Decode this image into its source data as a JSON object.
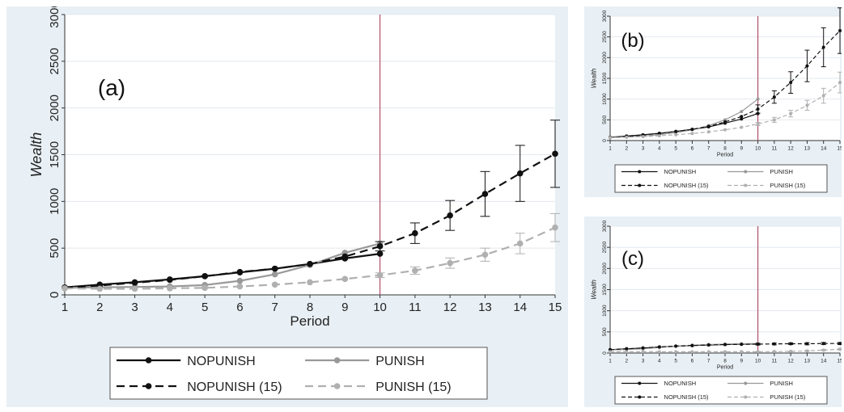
{
  "chart_data": [
    {
      "panel": "a",
      "type": "line",
      "label": "(a)",
      "xlabel": "Period",
      "ylabel": "Wealth",
      "xlim": [
        1,
        15
      ],
      "ylim": [
        0,
        3000
      ],
      "x_ticks": [
        1,
        2,
        3,
        4,
        5,
        6,
        7,
        8,
        9,
        10,
        11,
        12,
        13,
        14,
        15
      ],
      "y_ticks": [
        0,
        500,
        1000,
        1500,
        2000,
        2500,
        3000
      ],
      "vline_x": 10,
      "grid": "horizontal",
      "legend_position": "bottom",
      "series": [
        {
          "name": "NOPUNISH",
          "color": "#111111",
          "dash": "solid",
          "x": [
            1,
            2,
            3,
            4,
            5,
            6,
            7,
            8,
            9,
            10
          ],
          "values": [
            80,
            110,
            135,
            165,
            200,
            240,
            280,
            330,
            390,
            440
          ]
        },
        {
          "name": "PUNISH",
          "color": "#999999",
          "dash": "solid",
          "x": [
            1,
            2,
            3,
            4,
            5,
            6,
            7,
            8,
            9,
            10
          ],
          "values": [
            75,
            80,
            85,
            90,
            105,
            150,
            220,
            320,
            450,
            550
          ]
        },
        {
          "name": "NOPUNISH (15)",
          "color": "#111111",
          "dash": "dashed",
          "x": [
            1,
            2,
            3,
            4,
            5,
            6,
            7,
            8,
            9,
            10,
            11,
            12,
            13,
            14,
            15
          ],
          "values": [
            75,
            100,
            130,
            160,
            200,
            245,
            280,
            330,
            410,
            520,
            660,
            850,
            1080,
            1300,
            1510
          ],
          "errors": [
            0,
            0,
            0,
            0,
            0,
            0,
            0,
            0,
            0,
            50,
            110,
            160,
            240,
            300,
            360
          ]
        },
        {
          "name": "PUNISH (15)",
          "color": "#b0b0b0",
          "dash": "dashed",
          "x": [
            1,
            2,
            3,
            4,
            5,
            6,
            7,
            8,
            9,
            10,
            11,
            12,
            13,
            14,
            15
          ],
          "values": [
            70,
            65,
            65,
            70,
            75,
            90,
            110,
            135,
            170,
            210,
            260,
            340,
            430,
            550,
            720
          ],
          "errors": [
            0,
            0,
            0,
            0,
            0,
            0,
            0,
            0,
            0,
            25,
            40,
            55,
            70,
            110,
            150
          ]
        }
      ]
    },
    {
      "panel": "b",
      "type": "line",
      "label": "(b)",
      "xlabel": "Period",
      "ylabel": "Wealth",
      "xlim": [
        1,
        15
      ],
      "ylim": [
        0,
        3000
      ],
      "x_ticks": [
        1,
        2,
        3,
        4,
        5,
        6,
        7,
        8,
        9,
        10,
        11,
        12,
        13,
        14,
        15
      ],
      "y_ticks": [
        0,
        500,
        1000,
        1500,
        2000,
        2500,
        3000
      ],
      "vline_x": 10,
      "grid": "horizontal",
      "legend_position": "bottom",
      "series": [
        {
          "name": "NOPUNISH",
          "color": "#111111",
          "dash": "solid",
          "x": [
            1,
            2,
            3,
            4,
            5,
            6,
            7,
            8,
            9,
            10
          ],
          "values": [
            80,
            110,
            140,
            175,
            220,
            270,
            330,
            420,
            520,
            650
          ]
        },
        {
          "name": "PUNISH",
          "color": "#999999",
          "dash": "solid",
          "x": [
            1,
            2,
            3,
            4,
            5,
            6,
            7,
            8,
            9,
            10
          ],
          "values": [
            75,
            90,
            110,
            140,
            190,
            260,
            360,
            500,
            700,
            1000
          ]
        },
        {
          "name": "NOPUNISH (15)",
          "color": "#111111",
          "dash": "dashed",
          "x": [
            1,
            2,
            3,
            4,
            5,
            6,
            7,
            8,
            9,
            10,
            11,
            12,
            13,
            14,
            15
          ],
          "values": [
            75,
            100,
            135,
            170,
            220,
            270,
            340,
            450,
            580,
            760,
            1050,
            1400,
            1800,
            2250,
            2650
          ],
          "errors": [
            0,
            0,
            0,
            0,
            0,
            0,
            0,
            0,
            0,
            100,
            150,
            260,
            380,
            470,
            550
          ]
        },
        {
          "name": "PUNISH (15)",
          "color": "#b0b0b0",
          "dash": "dashed",
          "x": [
            1,
            2,
            3,
            4,
            5,
            6,
            7,
            8,
            9,
            10,
            11,
            12,
            13,
            14,
            15
          ],
          "values": [
            70,
            80,
            95,
            115,
            140,
            170,
            210,
            260,
            320,
            400,
            500,
            650,
            850,
            1080,
            1400
          ],
          "errors": [
            0,
            0,
            0,
            0,
            0,
            0,
            0,
            0,
            0,
            40,
            60,
            80,
            120,
            180,
            250
          ]
        }
      ]
    },
    {
      "panel": "c",
      "type": "line",
      "label": "(c)",
      "xlabel": "Period",
      "ylabel": "Wealth",
      "xlim": [
        1,
        15
      ],
      "ylim": [
        0,
        3000
      ],
      "x_ticks": [
        1,
        2,
        3,
        4,
        5,
        6,
        7,
        8,
        9,
        10,
        11,
        12,
        13,
        14,
        15
      ],
      "y_ticks": [
        0,
        500,
        1000,
        1500,
        2000,
        2500,
        3000
      ],
      "vline_x": 10,
      "grid": "horizontal",
      "legend_position": "bottom",
      "series": [
        {
          "name": "NOPUNISH",
          "color": "#111111",
          "dash": "solid",
          "x": [
            1,
            2,
            3,
            4,
            5,
            6,
            7,
            8,
            9,
            10
          ],
          "values": [
            80,
            100,
            120,
            140,
            160,
            175,
            190,
            200,
            210,
            215
          ]
        },
        {
          "name": "PUNISH",
          "color": "#999999",
          "dash": "solid",
          "x": [
            1,
            2,
            3,
            4,
            5,
            6,
            7,
            8,
            9,
            10
          ],
          "values": [
            75,
            85,
            100,
            130,
            160,
            185,
            200,
            210,
            220,
            225
          ]
        },
        {
          "name": "NOPUNISH (15)",
          "color": "#111111",
          "dash": "dashed",
          "x": [
            1,
            2,
            3,
            4,
            5,
            6,
            7,
            8,
            9,
            10,
            11,
            12,
            13,
            14,
            15
          ],
          "values": [
            80,
            100,
            120,
            145,
            165,
            180,
            190,
            200,
            205,
            210,
            215,
            220,
            220,
            225,
            225
          ],
          "errors": [
            0,
            0,
            0,
            0,
            0,
            0,
            0,
            0,
            0,
            20,
            20,
            20,
            25,
            25,
            25
          ]
        },
        {
          "name": "PUNISH (15)",
          "color": "#b0b0b0",
          "dash": "dashed",
          "x": [
            1,
            2,
            3,
            4,
            5,
            6,
            7,
            8,
            9,
            10,
            11,
            12,
            13,
            14,
            15
          ],
          "values": [
            30,
            30,
            30,
            30,
            30,
            30,
            30,
            30,
            30,
            30,
            35,
            40,
            50,
            70,
            90
          ],
          "errors": [
            0,
            0,
            0,
            0,
            0,
            0,
            0,
            0,
            0,
            5,
            5,
            8,
            10,
            15,
            20
          ]
        }
      ]
    }
  ]
}
